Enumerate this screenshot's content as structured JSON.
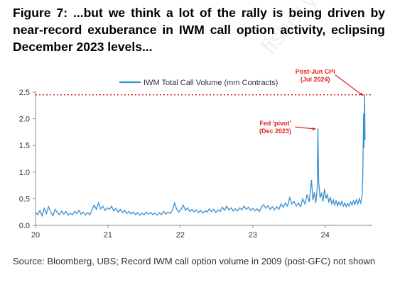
{
  "title": "Figure 7: ...but we think a lot of the rally is being driven by near-record exuberance in IWM call option activity, eclipsing December 2023 levels...",
  "source": "Source: Bloomberg, UBS; Record IWM call option volume in 2009 (post-GFC) not shown",
  "watermark": "fisher.y@",
  "colors": {
    "series": "#3a8fd0",
    "annotation": "#e0201b",
    "axis": "#888888",
    "text": "#333333"
  },
  "chart_data": {
    "type": "line",
    "series": [
      {
        "name": "IWM Total Call Volume (mm Contracts)"
      }
    ],
    "x_ticks": [
      "20",
      "21",
      "22",
      "23",
      "24"
    ],
    "y_ticks": [
      "0.0",
      "0.5",
      "1.0",
      "1.5",
      "2.0",
      "2.5"
    ],
    "xlim": [
      2020.0,
      2024.65
    ],
    "ylim": [
      0,
      2.5
    ],
    "reference_line": {
      "y": 2.45,
      "style": "dotted"
    },
    "annotations": [
      {
        "line1": "Fed 'pivot'",
        "line2": "(Dec 2023)",
        "x": 2023.9,
        "y": 1.82
      },
      {
        "line1": "Post-Jun CPI",
        "line2": "(Jul 2024)",
        "x": 2024.55,
        "y": 2.45
      }
    ],
    "points": [
      [
        2020.0,
        0.25
      ],
      [
        2020.03,
        0.2
      ],
      [
        2020.06,
        0.28
      ],
      [
        2020.09,
        0.18
      ],
      [
        2020.12,
        0.32
      ],
      [
        2020.15,
        0.22
      ],
      [
        2020.18,
        0.35
      ],
      [
        2020.21,
        0.25
      ],
      [
        2020.24,
        0.18
      ],
      [
        2020.27,
        0.3
      ],
      [
        2020.3,
        0.24
      ],
      [
        2020.33,
        0.2
      ],
      [
        2020.36,
        0.27
      ],
      [
        2020.39,
        0.21
      ],
      [
        2020.42,
        0.26
      ],
      [
        2020.45,
        0.19
      ],
      [
        2020.48,
        0.23
      ],
      [
        2020.51,
        0.2
      ],
      [
        2020.54,
        0.26
      ],
      [
        2020.57,
        0.22
      ],
      [
        2020.6,
        0.28
      ],
      [
        2020.63,
        0.21
      ],
      [
        2020.66,
        0.25
      ],
      [
        2020.69,
        0.19
      ],
      [
        2020.72,
        0.24
      ],
      [
        2020.75,
        0.2
      ],
      [
        2020.78,
        0.29
      ],
      [
        2020.81,
        0.38
      ],
      [
        2020.84,
        0.3
      ],
      [
        2020.87,
        0.42
      ],
      [
        2020.9,
        0.31
      ],
      [
        2020.93,
        0.36
      ],
      [
        2020.96,
        0.28
      ],
      [
        2020.99,
        0.33
      ],
      [
        2021.02,
        0.3
      ],
      [
        2021.05,
        0.36
      ],
      [
        2021.08,
        0.27
      ],
      [
        2021.11,
        0.32
      ],
      [
        2021.14,
        0.25
      ],
      [
        2021.17,
        0.3
      ],
      [
        2021.2,
        0.24
      ],
      [
        2021.23,
        0.28
      ],
      [
        2021.26,
        0.22
      ],
      [
        2021.29,
        0.26
      ],
      [
        2021.32,
        0.21
      ],
      [
        2021.35,
        0.25
      ],
      [
        2021.38,
        0.2
      ],
      [
        2021.41,
        0.24
      ],
      [
        2021.44,
        0.19
      ],
      [
        2021.47,
        0.23
      ],
      [
        2021.5,
        0.2
      ],
      [
        2021.53,
        0.25
      ],
      [
        2021.56,
        0.21
      ],
      [
        2021.59,
        0.24
      ],
      [
        2021.62,
        0.2
      ],
      [
        2021.65,
        0.23
      ],
      [
        2021.68,
        0.19
      ],
      [
        2021.71,
        0.24
      ],
      [
        2021.74,
        0.2
      ],
      [
        2021.77,
        0.26
      ],
      [
        2021.8,
        0.21
      ],
      [
        2021.83,
        0.25
      ],
      [
        2021.86,
        0.22
      ],
      [
        2021.89,
        0.28
      ],
      [
        2021.92,
        0.42
      ],
      [
        2021.95,
        0.3
      ],
      [
        2021.98,
        0.25
      ],
      [
        2022.01,
        0.3
      ],
      [
        2022.04,
        0.38
      ],
      [
        2022.07,
        0.28
      ],
      [
        2022.1,
        0.33
      ],
      [
        2022.13,
        0.26
      ],
      [
        2022.16,
        0.3
      ],
      [
        2022.19,
        0.25
      ],
      [
        2022.22,
        0.29
      ],
      [
        2022.25,
        0.24
      ],
      [
        2022.28,
        0.28
      ],
      [
        2022.31,
        0.23
      ],
      [
        2022.34,
        0.27
      ],
      [
        2022.37,
        0.25
      ],
      [
        2022.4,
        0.31
      ],
      [
        2022.43,
        0.26
      ],
      [
        2022.46,
        0.3
      ],
      [
        2022.49,
        0.24
      ],
      [
        2022.52,
        0.29
      ],
      [
        2022.55,
        0.26
      ],
      [
        2022.58,
        0.34
      ],
      [
        2022.61,
        0.28
      ],
      [
        2022.64,
        0.36
      ],
      [
        2022.67,
        0.29
      ],
      [
        2022.7,
        0.33
      ],
      [
        2022.73,
        0.27
      ],
      [
        2022.76,
        0.31
      ],
      [
        2022.79,
        0.27
      ],
      [
        2022.82,
        0.33
      ],
      [
        2022.85,
        0.29
      ],
      [
        2022.88,
        0.36
      ],
      [
        2022.91,
        0.3
      ],
      [
        2022.94,
        0.34
      ],
      [
        2022.97,
        0.28
      ],
      [
        2023.0,
        0.32
      ],
      [
        2023.03,
        0.27
      ],
      [
        2023.06,
        0.31
      ],
      [
        2023.09,
        0.26
      ],
      [
        2023.12,
        0.34
      ],
      [
        2023.15,
        0.39
      ],
      [
        2023.18,
        0.32
      ],
      [
        2023.21,
        0.37
      ],
      [
        2023.24,
        0.3
      ],
      [
        2023.27,
        0.35
      ],
      [
        2023.3,
        0.29
      ],
      [
        2023.33,
        0.35
      ],
      [
        2023.36,
        0.3
      ],
      [
        2023.39,
        0.4
      ],
      [
        2023.42,
        0.34
      ],
      [
        2023.45,
        0.42
      ],
      [
        2023.48,
        0.36
      ],
      [
        2023.51,
        0.52
      ],
      [
        2023.54,
        0.4
      ],
      [
        2023.57,
        0.45
      ],
      [
        2023.6,
        0.36
      ],
      [
        2023.63,
        0.42
      ],
      [
        2023.66,
        0.35
      ],
      [
        2023.69,
        0.5
      ],
      [
        2023.72,
        0.4
      ],
      [
        2023.75,
        0.58
      ],
      [
        2023.78,
        0.44
      ],
      [
        2023.81,
        0.85
      ],
      [
        2023.83,
        0.48
      ],
      [
        2023.85,
        0.62
      ],
      [
        2023.87,
        0.42
      ],
      [
        2023.89,
        0.7
      ],
      [
        2023.9,
        1.82
      ],
      [
        2023.91,
        0.8
      ],
      [
        2023.93,
        0.52
      ],
      [
        2023.95,
        0.6
      ],
      [
        2023.97,
        0.45
      ],
      [
        2023.99,
        0.68
      ],
      [
        2024.01,
        0.5
      ],
      [
        2024.03,
        0.58
      ],
      [
        2024.05,
        0.44
      ],
      [
        2024.07,
        0.52
      ],
      [
        2024.09,
        0.4
      ],
      [
        2024.11,
        0.48
      ],
      [
        2024.13,
        0.38
      ],
      [
        2024.15,
        0.46
      ],
      [
        2024.17,
        0.37
      ],
      [
        2024.19,
        0.44
      ],
      [
        2024.21,
        0.38
      ],
      [
        2024.23,
        0.45
      ],
      [
        2024.25,
        0.36
      ],
      [
        2024.27,
        0.42
      ],
      [
        2024.29,
        0.35
      ],
      [
        2024.31,
        0.41
      ],
      [
        2024.33,
        0.36
      ],
      [
        2024.35,
        0.44
      ],
      [
        2024.37,
        0.38
      ],
      [
        2024.39,
        0.46
      ],
      [
        2024.41,
        0.39
      ],
      [
        2024.43,
        0.48
      ],
      [
        2024.45,
        0.4
      ],
      [
        2024.47,
        0.5
      ],
      [
        2024.49,
        0.42
      ],
      [
        2024.51,
        0.55
      ],
      [
        2024.52,
        0.95
      ],
      [
        2024.53,
        2.1
      ],
      [
        2024.535,
        1.45
      ],
      [
        2024.545,
        2.45
      ],
      [
        2024.55,
        1.6
      ]
    ]
  }
}
